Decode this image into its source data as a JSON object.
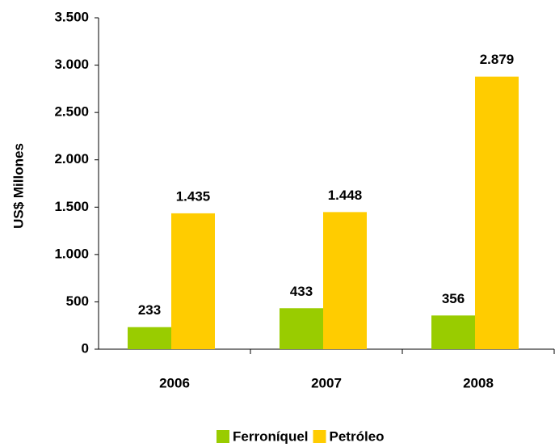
{
  "chart_data": {
    "type": "bar",
    "y_label": "US$ Millones",
    "categories": [
      "2006",
      "2007",
      "2008"
    ],
    "series": [
      {
        "name": "Ferroníquel",
        "color": "#99cc00",
        "values": [
          233,
          433,
          356
        ],
        "value_labels": [
          "233",
          "433",
          "356"
        ]
      },
      {
        "name": "Petróleo",
        "color": "#ffcc00",
        "values": [
          1435,
          1448,
          2879
        ],
        "value_labels": [
          "1.435",
          "1.448",
          "2.879"
        ]
      }
    ],
    "ylim": [
      0,
      3500
    ],
    "yticks": [
      0,
      500,
      {
        "value": 1000,
        "label": "1.000"
      },
      {
        "value": 1500,
        "label": "1.500"
      },
      {
        "value": 2000,
        "label": "2.000"
      },
      {
        "value": 2500,
        "label": "2.500"
      },
      {
        "value": 3000,
        "label": "3.000"
      },
      {
        "value": 3500,
        "label": "3.500"
      }
    ],
    "legend": "bottom"
  }
}
